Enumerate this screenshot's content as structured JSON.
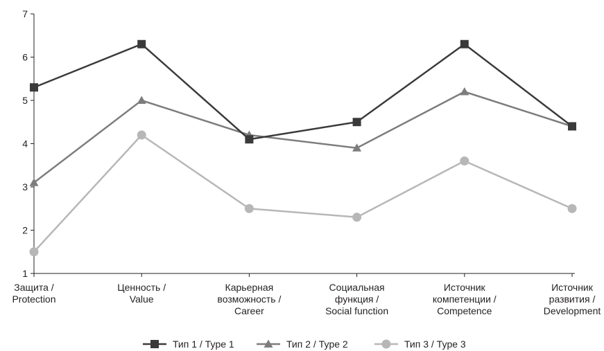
{
  "chart_data": {
    "type": "line",
    "categories": [
      [
        "Защита /",
        "Protection"
      ],
      [
        "Ценность /",
        "Value"
      ],
      [
        "Карьерная",
        "возможность /",
        "Career"
      ],
      [
        "Социальная",
        "функция /",
        "Social function"
      ],
      [
        "Источник",
        "компетенции /",
        "Competence"
      ],
      [
        "Источник",
        "развития /",
        "Development"
      ]
    ],
    "ylim": [
      1,
      7
    ],
    "yticks": [
      1,
      2,
      3,
      4,
      5,
      6,
      7
    ],
    "grid": false,
    "legend_position": "bottom",
    "series": [
      {
        "name": "Тип 1 / Type 1",
        "marker": "square",
        "color": "#3a3a3a",
        "values": [
          5.3,
          6.3,
          4.1,
          4.5,
          6.3,
          4.4
        ]
      },
      {
        "name": "Тип 2 / Type 2",
        "marker": "triangle",
        "color": "#7d7d7d",
        "values": [
          3.1,
          5.0,
          4.2,
          3.9,
          5.2,
          4.4
        ]
      },
      {
        "name": "Тип 3 / Type 3",
        "marker": "circle",
        "color": "#b7b7b7",
        "values": [
          1.5,
          4.2,
          2.5,
          2.3,
          3.6,
          2.5
        ]
      }
    ]
  }
}
